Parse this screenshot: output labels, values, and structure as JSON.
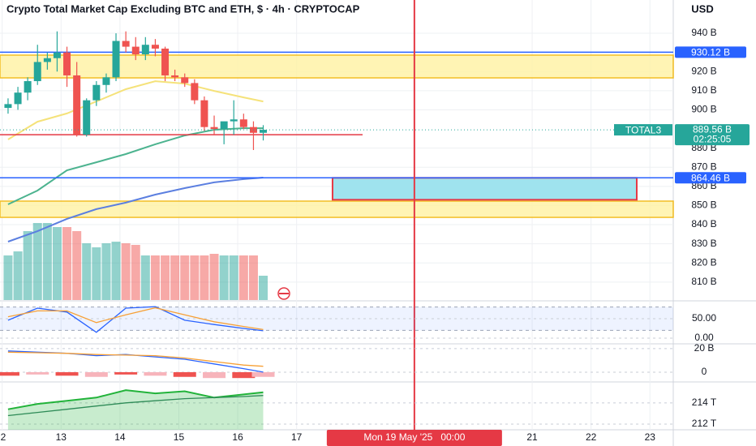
{
  "header": {
    "title": "Crypto Total Market Cap Excluding BTC and ETH, $ · 4h · CRYPTOCAP",
    "currency": "USD"
  },
  "chart_data": [
    {
      "type": "candlestick",
      "x": [
        12.1,
        12.267,
        12.433,
        12.6,
        12.767,
        12.933,
        13.1,
        13.267,
        13.433,
        13.6,
        13.767,
        13.933,
        14.1,
        14.267,
        14.433,
        14.6,
        14.767,
        14.933,
        15.1,
        15.267,
        15.433,
        15.6,
        15.767,
        15.933,
        16.1,
        16.267,
        16.433
      ],
      "open": [
        901,
        903,
        909,
        915,
        925,
        927,
        930,
        918,
        887,
        905,
        913,
        917,
        936,
        933,
        929,
        934,
        932,
        918,
        917,
        914,
        905,
        891,
        890,
        894,
        895,
        891,
        888
      ],
      "high": [
        906,
        912,
        917,
        934,
        930,
        941,
        933,
        925,
        906,
        915,
        919,
        940,
        941,
        938,
        938,
        937,
        933,
        921,
        919,
        916,
        907,
        897,
        893,
        905,
        898,
        894,
        892
      ],
      "low": [
        898,
        900,
        905,
        913,
        921,
        920,
        912,
        886,
        886,
        902,
        909,
        915,
        930,
        926,
        926,
        928,
        915,
        915,
        912,
        903,
        889,
        887,
        882,
        887,
        890,
        879,
        884
      ],
      "close": [
        903,
        909,
        915,
        925,
        927,
        930,
        918,
        887,
        905,
        913,
        917,
        936,
        933,
        929,
        934,
        932,
        918,
        917,
        914,
        905,
        891,
        890,
        894,
        895,
        891,
        888,
        889.56
      ],
      "up_color": "#26a69a",
      "down_color": "#ef5350",
      "volume": [
        55,
        60,
        85,
        95,
        95,
        90,
        90,
        85,
        70,
        65,
        70,
        72,
        70,
        68,
        55,
        55,
        55,
        55,
        55,
        55,
        55,
        57,
        55,
        55,
        55,
        55,
        30
      ],
      "xlim": [
        11.963,
        23.396
      ],
      "xticks": [
        {
          "value": 12,
          "label": "2"
        },
        13,
        14,
        15,
        16,
        17,
        21,
        22,
        23
      ],
      "ylim": [
        800.6,
        957.4
      ],
      "yticks": [
        {
          "value": 940,
          "label": "940 B"
        },
        {
          "value": 920,
          "label": "920 B"
        },
        {
          "value": 910,
          "label": "910 B"
        },
        {
          "value": 900,
          "label": "900 B"
        },
        {
          "value": 880,
          "label": "880 B"
        },
        {
          "value": 870,
          "label": "870 B"
        },
        {
          "value": 860,
          "label": "860 B"
        },
        {
          "value": 850,
          "label": "850 B"
        },
        {
          "value": 840,
          "label": "840 B"
        },
        {
          "value": 830,
          "label": "830 B"
        },
        {
          "value": 820,
          "label": "820 B"
        },
        {
          "value": 810,
          "label": "810 B"
        }
      ],
      "grid": true,
      "ma_x": [
        12.1,
        12.6,
        13.1,
        13.6,
        14.1,
        14.6,
        15.1,
        15.6,
        16.1,
        16.433
      ],
      "moving_averages": [
        {
          "color": "#f5e27a",
          "values": [
            884.5,
            893.8,
            898.1,
            904.4,
            910.8,
            915.0,
            913.7,
            909.9,
            906.5,
            904.4
          ]
        },
        {
          "color": "#4cb38f",
          "values": [
            850.6,
            857.8,
            868.4,
            872.6,
            876.9,
            882.0,
            886.6,
            889.6,
            890.4,
            890.4
          ]
        },
        {
          "color": "#5b7fe0",
          "values": [
            831.1,
            836.6,
            843.0,
            848.1,
            851.5,
            855.7,
            859.1,
            862.1,
            863.8,
            864.6
          ]
        }
      ],
      "zones": [
        {
          "from": 916.7,
          "to": 928.6
        },
        {
          "from": 843.8,
          "to": 852.3
        }
      ],
      "zone_color": "#fff3a8",
      "zone_stroke": "#f2b300",
      "levels": [
        {
          "value": 930.12,
          "value_label": "930.12 B",
          "color": "#2962ff"
        },
        {
          "value": 864.46,
          "value_label": "864.46 B",
          "color": "#2962ff"
        }
      ],
      "support": {
        "value": 887.0,
        "x_end": 18.12,
        "color": "#e53945"
      },
      "box": {
        "x": [
          17.61,
          22.776
        ],
        "from": 853.0,
        "to": 864.46,
        "color": "#9fe3ee",
        "stroke": "#e53945"
      },
      "last_price": {
        "value": 889.56,
        "value_label": "889.56 B",
        "symbol": "TOTAL3",
        "countdown": "02:25:05",
        "color": "#26a69a"
      },
      "crosshair": {
        "x": 19,
        "label": "Mon 19 May '25   00:00",
        "color": "#e53945"
      }
    },
    {
      "type": "line",
      "x": [
        12.1,
        12.6,
        13.1,
        13.6,
        14.1,
        14.6,
        15.1,
        15.6,
        16.1,
        16.433
      ],
      "ylim": [
        -16.7,
        93.75
      ],
      "yticks": [
        {
          "value": 50,
          "label": "50.00"
        },
        {
          "value": 0,
          "label": "0.00"
        }
      ],
      "band": [
        20,
        80
      ],
      "series": [
        {
          "color": "#2962ff",
          "values": [
            46,
            77,
            67,
            15,
            77,
            81,
            46,
            35,
            25,
            19
          ]
        },
        {
          "color": "#f7a035",
          "values": [
            55,
            70,
            70,
            40,
            60,
            78,
            60,
            42,
            30,
            22
          ]
        }
      ]
    },
    {
      "type": "line",
      "x": [
        12.1,
        12.6,
        13.1,
        13.6,
        14.1,
        14.6,
        15.1,
        15.6,
        16.1,
        16.433
      ],
      "ylim": [
        -9,
        23.4
      ],
      "yticks": [
        {
          "value": 20,
          "label": "20 B"
        },
        0
      ],
      "histogram": [
        -3,
        -2,
        -3,
        -4,
        -2,
        -3,
        -4,
        -5,
        -5,
        -4
      ],
      "series": [
        {
          "color": "#2962ff",
          "values": [
            18,
            17,
            16,
            14,
            15,
            13,
            11,
            7,
            3,
            0
          ]
        },
        {
          "color": "#f7a035",
          "values": [
            17,
            16.5,
            16,
            15,
            14.5,
            14,
            12,
            9,
            6,
            5
          ]
        }
      ]
    },
    {
      "type": "line",
      "x": [
        12.1,
        12.6,
        13.1,
        13.6,
        14.1,
        14.6,
        15.1,
        15.6,
        16.1,
        16.433
      ],
      "ylim": [
        211.46,
        215.9
      ],
      "yticks": [
        {
          "value": 214,
          "label": "214 T"
        },
        {
          "value": 212,
          "label": "212 T"
        }
      ],
      "series": [
        {
          "color": "#22b33a",
          "values": [
            213.4,
            213.9,
            214.2,
            214.5,
            215.2,
            214.9,
            215.1,
            214.5,
            214.8,
            215.0
          ],
          "area": true
        },
        {
          "color": "#2e8b57",
          "values": [
            212.8,
            213.1,
            213.4,
            213.7,
            214.0,
            214.2,
            214.4,
            214.5,
            214.6,
            214.7
          ]
        }
      ]
    }
  ]
}
